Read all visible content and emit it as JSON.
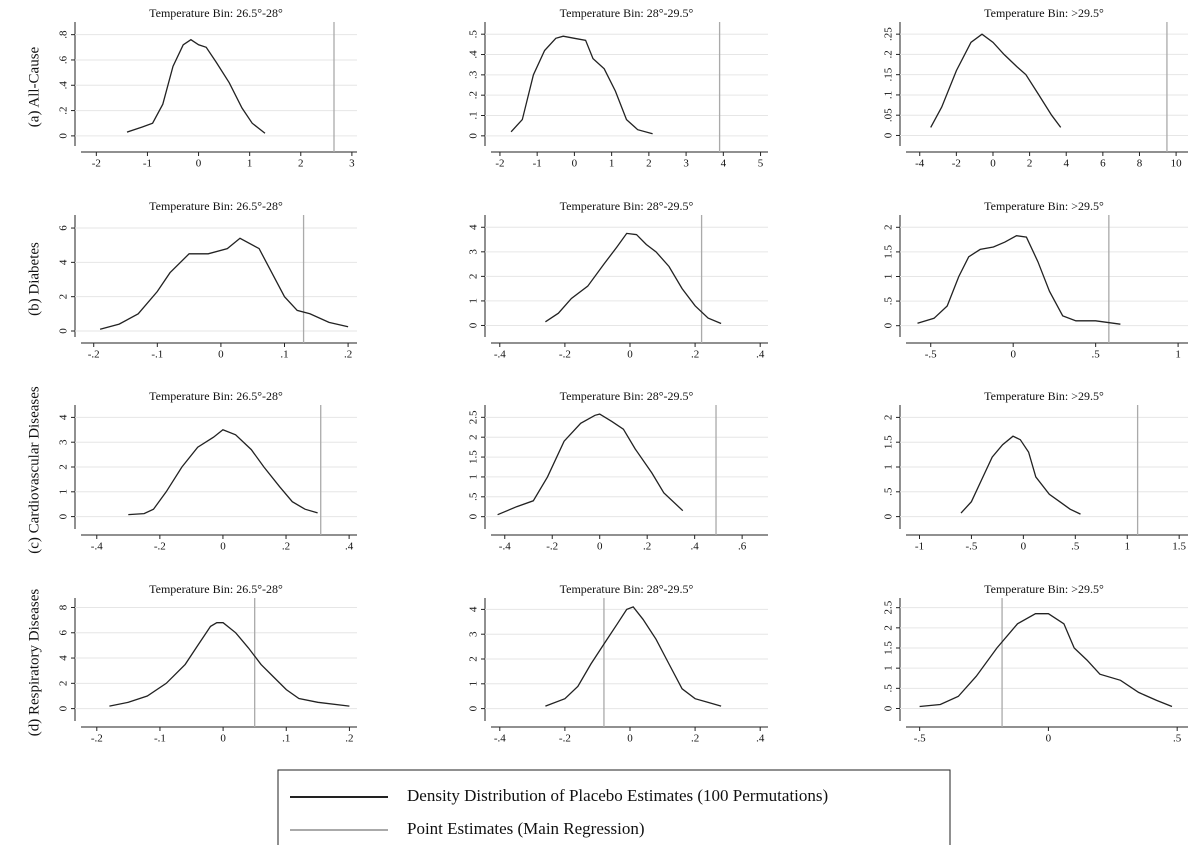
{
  "row_labels": [
    "(a) All-Cause",
    "(b) Diabetes",
    "(c) Cardiovascular Diseases",
    "(d) Respiratory Diseases"
  ],
  "legend": [
    {
      "name": "Density Distribution of Placebo Estimates (100 Permutations)",
      "color": "#222222"
    },
    {
      "name": "Point Estimates (Main Regression)",
      "color": "#aaaaaa"
    }
  ],
  "chart_data": [
    {
      "type": "line",
      "title": "Temperature Bin: 26.5°-28°",
      "grid": true,
      "x": [
        -1.4,
        -1.1,
        -0.9,
        -0.7,
        -0.5,
        -0.3,
        -0.15,
        0,
        0.15,
        0.35,
        0.6,
        0.85,
        1.05,
        1.3
      ],
      "series": [
        {
          "color": "#222222",
          "values": [
            0.03,
            0.07,
            0.1,
            0.25,
            0.55,
            0.72,
            0.76,
            0.72,
            0.7,
            0.58,
            0.42,
            0.22,
            0.1,
            0.02
          ]
        }
      ],
      "point_estimate": {
        "value": 2.65,
        "color": "#aaaaaa"
      },
      "xlim": [
        -2.3,
        3.1
      ],
      "xticks": [
        -2,
        -1,
        0,
        1,
        2,
        3
      ],
      "ylim": [
        -0.08,
        0.9
      ],
      "yticks": [
        0,
        {
          "value": 0.2,
          "label": ".2"
        },
        {
          "value": 0.4,
          "label": ".4"
        },
        {
          "value": 0.6,
          "label": ".6"
        },
        {
          "value": 0.8,
          "label": ".8"
        }
      ]
    },
    {
      "type": "line",
      "title": "Temperature Bin: 28°-29.5°",
      "grid": true,
      "x": [
        -1.7,
        -1.4,
        -1.1,
        -0.8,
        -0.5,
        -0.3,
        0,
        0.3,
        0.5,
        0.8,
        1.1,
        1.4,
        1.7,
        2.1
      ],
      "series": [
        {
          "color": "#222222",
          "values": [
            0.02,
            0.08,
            0.3,
            0.42,
            0.48,
            0.49,
            0.48,
            0.47,
            0.38,
            0.33,
            0.22,
            0.08,
            0.03,
            0.01
          ]
        }
      ],
      "point_estimate": {
        "value": 3.9,
        "color": "#aaaaaa"
      },
      "xlim": [
        -2.24,
        5.2
      ],
      "xticks": [
        -2,
        -1,
        0,
        1,
        2,
        3,
        4,
        5
      ],
      "ylim": [
        -0.05,
        0.56
      ],
      "yticks": [
        0,
        {
          "value": 0.1,
          "label": ".1"
        },
        {
          "value": 0.2,
          "label": ".2"
        },
        {
          "value": 0.3,
          "label": ".3"
        },
        {
          "value": 0.4,
          "label": ".4"
        },
        {
          "value": 0.5,
          "label": ".5"
        }
      ]
    },
    {
      "type": "line",
      "title": "Temperature Bin: >29.5°",
      "grid": true,
      "x": [
        -3.4,
        -2.8,
        -2,
        -1.2,
        -0.6,
        0,
        0.6,
        1.3,
        1.8,
        2.5,
        3.2,
        3.7
      ],
      "series": [
        {
          "color": "#222222",
          "values": [
            0.02,
            0.07,
            0.16,
            0.23,
            0.25,
            0.23,
            0.2,
            0.17,
            0.15,
            0.1,
            0.05,
            0.02
          ]
        }
      ],
      "point_estimate": {
        "value": 9.5,
        "color": "#aaaaaa"
      },
      "xlim": [
        -4.75,
        10.65
      ],
      "xticks": [
        -4,
        -2,
        0,
        2,
        4,
        6,
        8,
        10
      ],
      "ylim": [
        -0.026,
        0.28
      ],
      "yticks": [
        0,
        {
          "value": 0.05,
          "label": ".05"
        },
        {
          "value": 0.1,
          "label": ".1"
        },
        {
          "value": 0.15,
          "label": ".15"
        },
        {
          "value": 0.2,
          "label": ".2"
        },
        {
          "value": 0.25,
          "label": ".25"
        }
      ]
    },
    {
      "type": "line",
      "title": "Temperature Bin: 26.5°-28°",
      "grid": true,
      "x": [
        -0.19,
        -0.16,
        -0.13,
        -0.1,
        -0.08,
        -0.05,
        -0.02,
        0.01,
        0.03,
        0.06,
        0.08,
        0.1,
        0.12,
        0.14,
        0.17,
        0.2
      ],
      "series": [
        {
          "color": "#222222",
          "values": [
            0.1,
            0.4,
            1,
            2.3,
            3.4,
            4.5,
            4.5,
            4.8,
            5.4,
            4.8,
            3.4,
            2,
            1.2,
            1,
            0.5,
            0.25
          ]
        }
      ],
      "point_estimate": {
        "value": 0.13,
        "color": "#aaaaaa"
      },
      "xlim": [
        -0.22,
        0.214
      ],
      "xticks": [
        {
          "value": -0.2,
          "label": "-.2"
        },
        {
          "value": -0.1,
          "label": "-.1"
        },
        0,
        {
          "value": 0.1,
          "label": ".1"
        },
        {
          "value": 0.2,
          "label": ".2"
        }
      ],
      "ylim": [
        -0.35,
        6.76
      ],
      "yticks": [
        0,
        2,
        4,
        6
      ]
    },
    {
      "type": "line",
      "title": "Temperature Bin: 28°-29.5°",
      "grid": true,
      "x": [
        -0.26,
        -0.22,
        -0.18,
        -0.13,
        -0.08,
        -0.04,
        -0.01,
        0.02,
        0.05,
        0.08,
        0.12,
        0.16,
        0.2,
        0.24,
        0.28
      ],
      "series": [
        {
          "color": "#222222",
          "values": [
            0.15,
            0.5,
            1.1,
            1.6,
            2.5,
            3.2,
            3.75,
            3.7,
            3.3,
            3,
            2.4,
            1.5,
            0.8,
            0.3,
            0.08
          ]
        }
      ],
      "point_estimate": {
        "value": 0.22,
        "color": "#aaaaaa"
      },
      "xlim": [
        -0.427,
        0.424
      ],
      "xticks": [
        {
          "value": -0.4,
          "label": "-.4"
        },
        {
          "value": -0.2,
          "label": "-.2"
        },
        0,
        {
          "value": 0.2,
          "label": ".2"
        },
        {
          "value": 0.4,
          "label": ".4"
        }
      ],
      "ylim": [
        -0.47,
        4.5
      ],
      "yticks": [
        0,
        1,
        2,
        3,
        4
      ]
    },
    {
      "type": "line",
      "title": "Temperature Bin: >29.5°",
      "grid": true,
      "x": [
        -0.58,
        -0.48,
        -0.4,
        -0.33,
        -0.27,
        -0.2,
        -0.12,
        -0.05,
        0.02,
        0.08,
        0.15,
        0.22,
        0.3,
        0.38,
        0.5,
        0.65
      ],
      "series": [
        {
          "color": "#222222",
          "values": [
            0.05,
            0.15,
            0.4,
            1,
            1.4,
            1.55,
            1.6,
            1.7,
            1.83,
            1.8,
            1.3,
            0.7,
            0.2,
            0.1,
            0.1,
            0.03
          ]
        }
      ],
      "point_estimate": {
        "value": 0.58,
        "color": "#aaaaaa"
      },
      "xlim": [
        -0.65,
        1.06
      ],
      "xticks": [
        {
          "value": -0.5,
          "label": "-.5"
        },
        0,
        {
          "value": 0.5,
          "label": ".5"
        },
        1
      ],
      "ylim": [
        -0.23,
        2.25
      ],
      "yticks": [
        0,
        {
          "value": 0.5,
          "label": ".5"
        },
        1,
        1.5,
        2
      ]
    },
    {
      "type": "line",
      "title": "Temperature Bin: 26.5°-28°",
      "grid": true,
      "x": [
        -0.3,
        -0.25,
        -0.22,
        -0.18,
        -0.13,
        -0.08,
        -0.03,
        0,
        0.04,
        0.09,
        0.13,
        0.18,
        0.22,
        0.26,
        0.3
      ],
      "series": [
        {
          "color": "#222222",
          "values": [
            0.08,
            0.12,
            0.3,
            1,
            2,
            2.8,
            3.2,
            3.5,
            3.3,
            2.7,
            2,
            1.2,
            0.6,
            0.3,
            0.15
          ]
        }
      ],
      "point_estimate": {
        "value": 0.31,
        "color": "#aaaaaa"
      },
      "xlim": [
        -0.45,
        0.425
      ],
      "xticks": [
        {
          "value": -0.4,
          "label": "-.4"
        },
        {
          "value": -0.2,
          "label": "-.2"
        },
        0,
        {
          "value": 0.2,
          "label": ".2"
        },
        {
          "value": 0.4,
          "label": ".4"
        }
      ],
      "ylim": [
        -0.5,
        4.5
      ],
      "yticks": [
        0,
        1,
        2,
        3,
        4
      ]
    },
    {
      "type": "line",
      "title": "Temperature Bin: 28°-29.5°",
      "grid": true,
      "x": [
        -0.43,
        -0.35,
        -0.28,
        -0.22,
        -0.15,
        -0.08,
        -0.02,
        0,
        0.05,
        0.1,
        0.15,
        0.22,
        0.27,
        0.35
      ],
      "series": [
        {
          "color": "#222222",
          "values": [
            0.05,
            0.25,
            0.4,
            1,
            1.9,
            2.35,
            2.55,
            2.58,
            2.4,
            2.2,
            1.7,
            1.1,
            0.6,
            0.15
          ]
        }
      ],
      "point_estimate": {
        "value": 0.49,
        "color": "#aaaaaa"
      },
      "xlim": [
        -0.458,
        0.709
      ],
      "xticks": [
        {
          "value": -0.4,
          "label": "-.4"
        },
        {
          "value": -0.2,
          "label": "-.2"
        },
        0,
        {
          "value": 0.2,
          "label": ".2"
        },
        {
          "value": 0.4,
          "label": ".4"
        },
        {
          "value": 0.6,
          "label": ".6"
        }
      ],
      "ylim": [
        -0.31,
        2.81
      ],
      "yticks": [
        0,
        {
          "value": 0.5,
          "label": ".5"
        },
        1,
        1.5,
        2,
        2.5
      ]
    },
    {
      "type": "line",
      "title": "Temperature Bin: >29.5°",
      "grid": true,
      "x": [
        -0.6,
        -0.5,
        -0.4,
        -0.3,
        -0.2,
        -0.1,
        -0.03,
        0.05,
        0.12,
        0.25,
        0.35,
        0.45,
        0.55
      ],
      "series": [
        {
          "color": "#222222",
          "values": [
            0.07,
            0.3,
            0.75,
            1.2,
            1.45,
            1.62,
            1.55,
            1.3,
            0.8,
            0.45,
            0.3,
            0.15,
            0.05
          ]
        }
      ],
      "point_estimate": {
        "value": 1.1,
        "color": "#aaaaaa"
      },
      "xlim": [
        -1.13,
        1.585
      ],
      "xticks": [
        -1,
        {
          "value": -0.5,
          "label": "-.5"
        },
        0,
        {
          "value": 0.5,
          "label": ".5"
        },
        1,
        1.5
      ],
      "ylim": [
        -0.25,
        2.25
      ],
      "yticks": [
        0,
        {
          "value": 0.5,
          "label": ".5"
        },
        1,
        1.5,
        2
      ]
    },
    {
      "type": "line",
      "title": "Temperature Bin: 26.5°-28°",
      "grid": true,
      "x": [
        -0.18,
        -0.15,
        -0.12,
        -0.09,
        -0.06,
        -0.04,
        -0.02,
        -0.01,
        0,
        0.02,
        0.04,
        0.06,
        0.08,
        0.1,
        0.12,
        0.15,
        0.2
      ],
      "series": [
        {
          "color": "#222222",
          "values": [
            0.2,
            0.5,
            1,
            2,
            3.5,
            5,
            6.5,
            6.8,
            6.8,
            6,
            4.8,
            3.5,
            2.5,
            1.5,
            0.8,
            0.5,
            0.2
          ]
        }
      ],
      "point_estimate": {
        "value": 0.05,
        "color": "#aaaaaa"
      },
      "xlim": [
        -0.225,
        0.212
      ],
      "xticks": [
        {
          "value": -0.2,
          "label": "-.2"
        },
        {
          "value": -0.1,
          "label": "-.1"
        },
        0,
        {
          "value": 0.1,
          "label": ".1"
        },
        {
          "value": 0.2,
          "label": ".2"
        }
      ],
      "ylim": [
        -0.98,
        8.75
      ],
      "yticks": [
        0,
        2,
        4,
        6,
        8
      ]
    },
    {
      "type": "line",
      "title": "Temperature Bin: 28°-29.5°",
      "grid": true,
      "x": [
        -0.26,
        -0.2,
        -0.16,
        -0.12,
        -0.08,
        -0.04,
        -0.01,
        0.01,
        0.04,
        0.08,
        0.12,
        0.16,
        0.2,
        0.24,
        0.28
      ],
      "series": [
        {
          "color": "#222222",
          "values": [
            0.1,
            0.4,
            0.9,
            1.8,
            2.6,
            3.4,
            4,
            4.1,
            3.6,
            2.8,
            1.8,
            0.8,
            0.4,
            0.25,
            0.1
          ]
        }
      ],
      "point_estimate": {
        "value": -0.08,
        "color": "#aaaaaa"
      },
      "xlim": [
        -0.427,
        0.424
      ],
      "xticks": [
        {
          "value": -0.4,
          "label": "-.4"
        },
        {
          "value": -0.2,
          "label": "-.2"
        },
        0,
        {
          "value": 0.2,
          "label": ".2"
        },
        {
          "value": 0.4,
          "label": ".4"
        }
      ],
      "ylim": [
        -0.5,
        4.46
      ],
      "yticks": [
        0,
        1,
        2,
        3,
        4
      ]
    },
    {
      "type": "line",
      "title": "Temperature Bin: >29.5°",
      "grid": true,
      "x": [
        -0.5,
        -0.42,
        -0.35,
        -0.28,
        -0.2,
        -0.12,
        -0.05,
        0,
        0.06,
        0.1,
        0.15,
        0.2,
        0.28,
        0.35,
        0.42,
        0.48
      ],
      "series": [
        {
          "color": "#222222",
          "values": [
            0.05,
            0.1,
            0.3,
            0.8,
            1.5,
            2.1,
            2.35,
            2.35,
            2.1,
            1.5,
            1.2,
            0.85,
            0.7,
            0.4,
            0.2,
            0.05
          ]
        }
      ],
      "point_estimate": {
        "value": -0.18,
        "color": "#aaaaaa"
      },
      "xlim": [
        -0.553,
        0.542
      ],
      "xticks": [
        {
          "value": -0.5,
          "label": "-.5"
        },
        0,
        {
          "value": 0.5,
          "label": ".5"
        }
      ],
      "ylim": [
        -0.31,
        2.74
      ],
      "yticks": [
        0,
        {
          "value": 0.5,
          "label": ".5"
        },
        1,
        1.5,
        2,
        2.5
      ]
    }
  ]
}
